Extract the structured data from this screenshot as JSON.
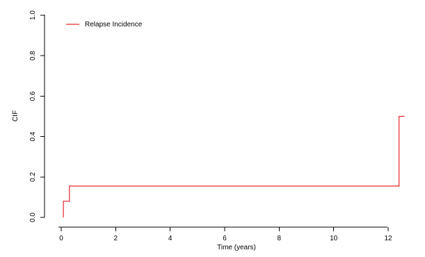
{
  "chart_data": {
    "type": "line",
    "step": true,
    "title": "",
    "xlabel": "Time (years)",
    "ylabel": "CIF",
    "xlim": [
      -0.4,
      13
    ],
    "ylim": [
      -0.02,
      1.02
    ],
    "xticks": [
      0,
      2,
      4,
      6,
      8,
      10,
      12
    ],
    "yticks": [
      0.0,
      0.2,
      0.4,
      0.6,
      0.8,
      1.0
    ],
    "xtick_labels": [
      "0",
      "2",
      "4",
      "6",
      "8",
      "10",
      "12"
    ],
    "ytick_labels": [
      "0.0",
      "0.2",
      "0.4",
      "0.6",
      "0.8",
      "1.0"
    ],
    "legend_position": "top-left",
    "grid": false,
    "series": [
      {
        "name": "Relapse Incidence",
        "color": "#e8262a",
        "x": [
          0.08,
          0.08,
          0.3,
          0.3,
          12.4,
          12.4,
          12.6
        ],
        "y": [
          0.0,
          0.08,
          0.08,
          0.155,
          0.155,
          0.5,
          0.5
        ]
      }
    ]
  }
}
